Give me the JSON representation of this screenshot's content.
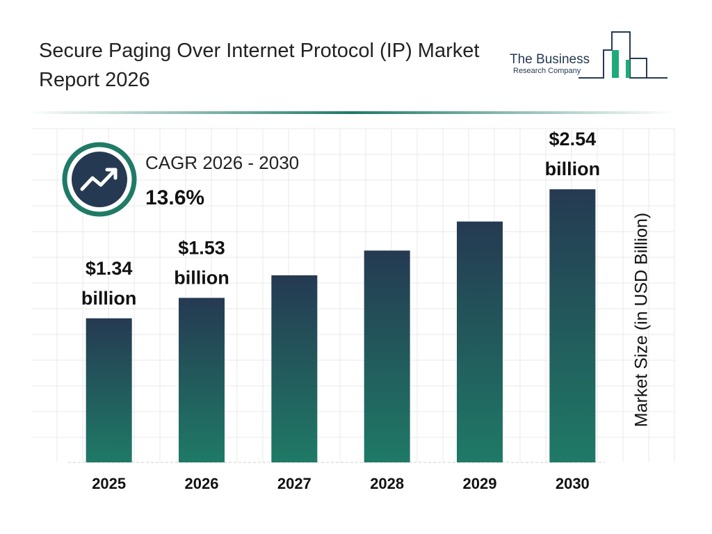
{
  "chart_data": {
    "type": "bar",
    "title": "Secure Paging Over Internet Protocol (IP) Market Report 2026",
    "logo": {
      "line1": "The Business",
      "line2": "Research Company"
    },
    "cagr_label": "CAGR 2026 - 2030",
    "cagr_value": "13.6%",
    "y_label": "Market Size (in USD Billion)",
    "categories": [
      "2025",
      "2026",
      "2027",
      "2028",
      "2029",
      "2030"
    ],
    "values": [
      1.34,
      1.53,
      1.74,
      1.97,
      2.24,
      2.54
    ],
    "value_labels": [
      "$1.34 billion",
      "$1.53 billion",
      null,
      null,
      null,
      "$2.54 billion"
    ],
    "color_top": "#253a52",
    "color_bottom": "#1f7a66",
    "ylim": [
      0,
      2.8
    ]
  }
}
